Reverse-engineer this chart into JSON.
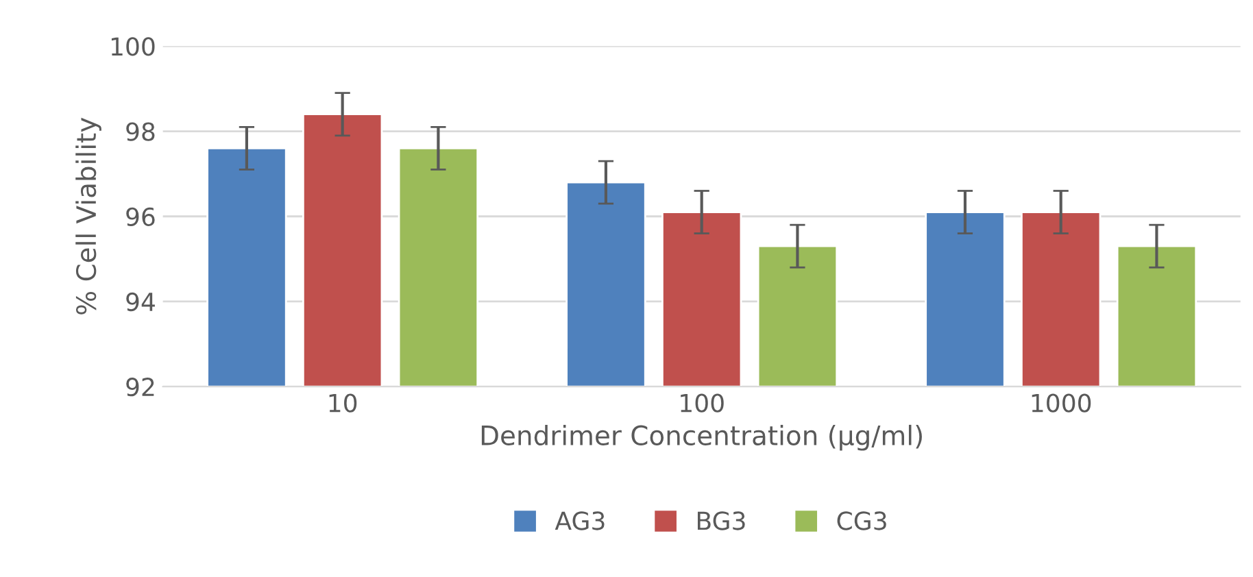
{
  "chart_data": {
    "type": "bar",
    "xlabel": "Dendrimer Concentration (µg/ml)",
    "ylabel": "% Cell Viability",
    "categories": [
      "10",
      "100",
      "1000"
    ],
    "series": [
      {
        "name": "AG3",
        "color": "#4f81bd",
        "values": [
          97.6,
          96.8,
          96.1
        ],
        "errors": [
          0.5,
          0.5,
          0.5
        ]
      },
      {
        "name": "BG3",
        "color": "#c0504d",
        "values": [
          98.4,
          96.1,
          96.1
        ],
        "errors": [
          0.5,
          0.5,
          0.5
        ]
      },
      {
        "name": "CG3",
        "color": "#9bbb59",
        "values": [
          97.6,
          95.3,
          95.3
        ],
        "errors": [
          0.5,
          0.5,
          0.5
        ]
      }
    ],
    "ylim": [
      92,
      100
    ],
    "yticks": [
      92,
      94,
      96,
      98,
      100
    ],
    "grid": "y",
    "legend": "bottom"
  }
}
